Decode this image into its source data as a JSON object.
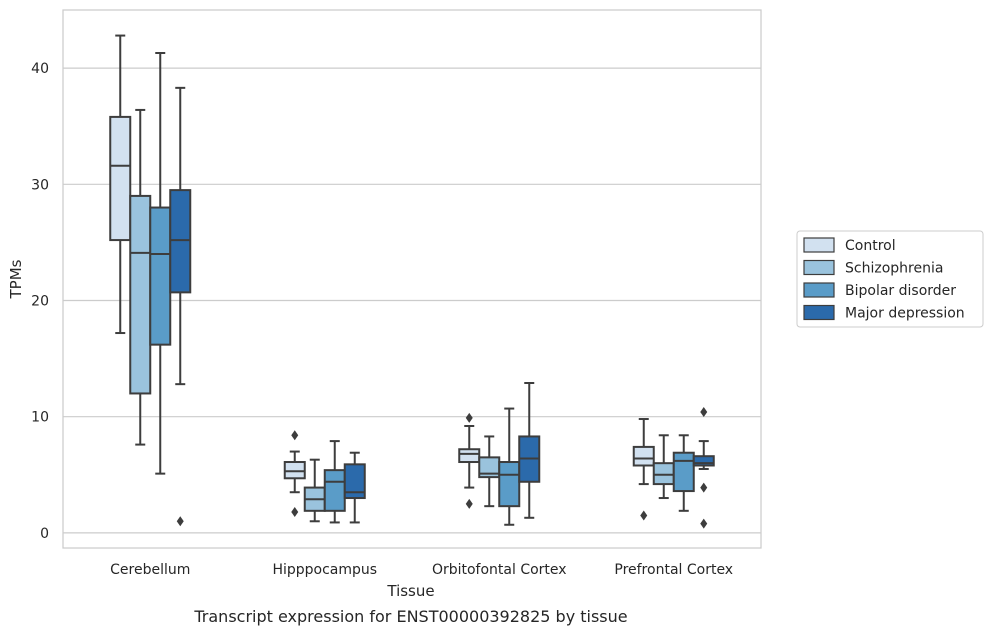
{
  "chart_data": {
    "type": "box",
    "title": "",
    "caption": "Transcript expression for ENST00000392825 by tissue",
    "xlabel": "Tissue",
    "ylabel": "TPMs",
    "ylim": [
      -1.3,
      45
    ],
    "yticks": [
      0,
      10,
      20,
      30,
      40
    ],
    "grid": true,
    "legend_position": "right-outside",
    "categories": [
      "Cerebellum",
      "Hipppocampus",
      "Orbitofontal Cortex",
      "Prefrontal Cortex"
    ],
    "series": [
      {
        "name": "Control",
        "color": "#d2e1f0",
        "boxes": [
          {
            "whislo": 17.2,
            "q1": 25.2,
            "med": 31.6,
            "q3": 35.8,
            "whishi": 42.8,
            "fliers": []
          },
          {
            "whislo": 3.5,
            "q1": 4.7,
            "med": 5.3,
            "q3": 6.1,
            "whishi": 7.0,
            "fliers": [
              1.8,
              8.4
            ]
          },
          {
            "whislo": 3.9,
            "q1": 6.1,
            "med": 6.8,
            "q3": 7.2,
            "whishi": 9.2,
            "fliers": [
              2.5,
              9.9
            ]
          },
          {
            "whislo": 4.2,
            "q1": 5.8,
            "med": 6.4,
            "q3": 7.4,
            "whishi": 9.8,
            "fliers": [
              1.5
            ]
          }
        ]
      },
      {
        "name": "Schizophrenia",
        "color": "#9ac3dd",
        "boxes": [
          {
            "whislo": 7.6,
            "q1": 12.0,
            "med": 24.1,
            "q3": 29.0,
            "whishi": 36.4,
            "fliers": []
          },
          {
            "whislo": 1.0,
            "q1": 1.9,
            "med": 2.9,
            "q3": 3.9,
            "whishi": 6.3,
            "fliers": []
          },
          {
            "whislo": 2.3,
            "q1": 4.8,
            "med": 5.1,
            "q3": 6.5,
            "whishi": 8.3,
            "fliers": []
          },
          {
            "whislo": 3.0,
            "q1": 4.2,
            "med": 5.0,
            "q3": 6.0,
            "whishi": 8.4,
            "fliers": []
          }
        ]
      },
      {
        "name": "Bipolar disorder",
        "color": "#5a9cc8",
        "boxes": [
          {
            "whislo": 5.1,
            "q1": 16.2,
            "med": 24.0,
            "q3": 28.0,
            "whishi": 41.3,
            "fliers": []
          },
          {
            "whislo": 0.9,
            "q1": 1.9,
            "med": 4.4,
            "q3": 5.4,
            "whishi": 7.9,
            "fliers": []
          },
          {
            "whislo": 0.7,
            "q1": 2.3,
            "med": 5.0,
            "q3": 6.1,
            "whishi": 10.7,
            "fliers": []
          },
          {
            "whislo": 1.9,
            "q1": 3.6,
            "med": 6.2,
            "q3": 6.9,
            "whishi": 8.4,
            "fliers": []
          }
        ]
      },
      {
        "name": "Major depression",
        "color": "#2b6aab",
        "boxes": [
          {
            "whislo": 12.8,
            "q1": 20.7,
            "med": 25.2,
            "q3": 29.5,
            "whishi": 38.3,
            "fliers": [
              1.0
            ]
          },
          {
            "whislo": 0.9,
            "q1": 3.0,
            "med": 3.5,
            "q3": 5.9,
            "whishi": 6.9,
            "fliers": []
          },
          {
            "whislo": 1.3,
            "q1": 4.4,
            "med": 6.4,
            "q3": 8.3,
            "whishi": 12.9,
            "fliers": []
          },
          {
            "whislo": 5.5,
            "q1": 5.8,
            "med": 6.0,
            "q3": 6.6,
            "whishi": 7.9,
            "fliers": [
              0.8,
              3.9,
              10.4
            ]
          }
        ]
      }
    ]
  }
}
